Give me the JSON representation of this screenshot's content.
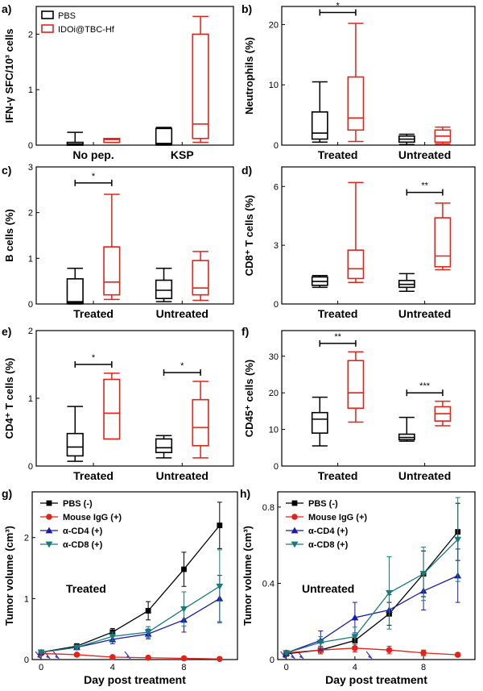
{
  "colors": {
    "pbs": "#000000",
    "idoi": "#e2231a",
    "mouse_igg": "#e2231a",
    "cd4": "#1a1aaa",
    "cd8": "#1a7a7a",
    "arrow": "#3a3ac8"
  },
  "chart_data": [
    {
      "id": "a",
      "type": "box",
      "panel_label": "a)",
      "ylabel": "IFN-γ SFC/10³ cells",
      "ylim": [
        0,
        2.5
      ],
      "yticks": [
        0,
        1,
        2
      ],
      "categories": [
        "No pep.",
        "KSP"
      ],
      "legend": [
        "PBS",
        "IDOi@TBC-Hf"
      ],
      "series": [
        {
          "name": "PBS",
          "boxes": [
            {
              "min": 0,
              "q1": 0,
              "median": 0.02,
              "q3": 0.05,
              "max": 0.23
            },
            {
              "min": 0,
              "q1": 0.02,
              "median": 0.03,
              "q3": 0.3,
              "max": 0.32
            }
          ]
        },
        {
          "name": "IDOi@TBC-Hf",
          "boxes": [
            {
              "min": 0.05,
              "q1": 0.05,
              "median": 0.1,
              "q3": 0.12,
              "max": 0.12
            },
            {
              "min": 0.05,
              "q1": 0.12,
              "median": 0.38,
              "q3": 2.0,
              "max": 2.32
            }
          ]
        }
      ],
      "significance": []
    },
    {
      "id": "b",
      "type": "box",
      "panel_label": "b)",
      "ylabel": "Neutrophils (%)",
      "ylim": [
        0,
        23
      ],
      "yticks": [
        0,
        10,
        20
      ],
      "categories": [
        "Treated",
        "Untreated"
      ],
      "series": [
        {
          "name": "PBS",
          "boxes": [
            {
              "min": 0.5,
              "q1": 1.0,
              "median": 2.0,
              "q3": 5.5,
              "max": 10.5
            },
            {
              "min": 0.1,
              "q1": 0.5,
              "median": 1.0,
              "q3": 1.5,
              "max": 1.8
            }
          ]
        },
        {
          "name": "IDOi@TBC-Hf",
          "boxes": [
            {
              "min": 0.6,
              "q1": 2.5,
              "median": 4.5,
              "q3": 11.3,
              "max": 20.2
            },
            {
              "min": 0.2,
              "q1": 0.5,
              "median": 1.5,
              "q3": 2.5,
              "max": 3.0
            }
          ]
        }
      ],
      "significance": [
        {
          "label": "*",
          "group": 0,
          "value": 22.0
        }
      ]
    },
    {
      "id": "c",
      "type": "box",
      "panel_label": "c)",
      "ylabel": "B cells (%)",
      "ylim": [
        0,
        3
      ],
      "yticks": [
        0,
        1,
        2,
        3
      ],
      "categories": [
        "Treated",
        "Untreated"
      ],
      "series": [
        {
          "name": "PBS",
          "boxes": [
            {
              "min": 0,
              "q1": 0.02,
              "median": 0.05,
              "q3": 0.55,
              "max": 0.78
            },
            {
              "min": 0.05,
              "q1": 0.12,
              "median": 0.3,
              "q3": 0.52,
              "max": 0.78
            }
          ]
        },
        {
          "name": "IDOi@TBC-Hf",
          "boxes": [
            {
              "min": 0.1,
              "q1": 0.2,
              "median": 0.48,
              "q3": 1.25,
              "max": 2.4
            },
            {
              "min": 0.08,
              "q1": 0.2,
              "median": 0.35,
              "q3": 0.95,
              "max": 1.15
            }
          ]
        }
      ],
      "significance": [
        {
          "label": "*",
          "group": 0,
          "value": 2.65
        }
      ]
    },
    {
      "id": "d",
      "type": "box",
      "panel_label": "d)",
      "ylabel": "CD8⁺ T cells (%)",
      "ylim": [
        0,
        7
      ],
      "yticks": [
        0,
        3,
        6
      ],
      "categories": [
        "Treated",
        "Untreated"
      ],
      "series": [
        {
          "name": "PBS",
          "boxes": [
            {
              "min": 0.85,
              "q1": 0.95,
              "median": 1.15,
              "q3": 1.38,
              "max": 1.45
            },
            {
              "min": 0.65,
              "q1": 0.85,
              "median": 1.0,
              "q3": 1.2,
              "max": 1.55
            }
          ]
        },
        {
          "name": "IDOi@TBC-Hf",
          "boxes": [
            {
              "min": 1.1,
              "q1": 1.3,
              "median": 1.8,
              "q3": 2.75,
              "max": 6.2
            },
            {
              "min": 1.75,
              "q1": 1.9,
              "median": 2.45,
              "q3": 4.4,
              "max": 5.15
            }
          ]
        }
      ],
      "significance": [
        {
          "label": "**",
          "group": 1,
          "value": 5.7
        }
      ]
    },
    {
      "id": "e",
      "type": "box",
      "panel_label": "e)",
      "ylabel": "CD4⁺ T cells (%)",
      "ylim": [
        0,
        2
      ],
      "yticks": [
        0,
        1,
        2
      ],
      "categories": [
        "Treated",
        "Untreated"
      ],
      "series": [
        {
          "name": "PBS",
          "boxes": [
            {
              "min": 0.07,
              "q1": 0.15,
              "median": 0.28,
              "q3": 0.48,
              "max": 0.88
            },
            {
              "min": 0.12,
              "q1": 0.2,
              "median": 0.27,
              "q3": 0.4,
              "max": 0.45
            }
          ]
        },
        {
          "name": "IDOi@TBC-Hf",
          "boxes": [
            {
              "min": 0.4,
              "q1": 0.4,
              "median": 0.78,
              "q3": 1.28,
              "max": 1.37
            },
            {
              "min": 0.12,
              "q1": 0.3,
              "median": 0.57,
              "q3": 0.98,
              "max": 1.25
            }
          ]
        }
      ],
      "significance": [
        {
          "label": "*",
          "group": 0,
          "value": 1.5
        },
        {
          "label": "*",
          "group": 1,
          "value": 1.38
        }
      ]
    },
    {
      "id": "f",
      "type": "box",
      "panel_label": "f)",
      "ylabel": "CD45⁺ cells (%)",
      "ylim": [
        0,
        37
      ],
      "yticks": [
        0,
        10,
        20,
        30
      ],
      "categories": [
        "Treated",
        "Untreated"
      ],
      "series": [
        {
          "name": "PBS",
          "boxes": [
            {
              "min": 5.5,
              "q1": 9.0,
              "median": 12.8,
              "q3": 14.6,
              "max": 18.8
            },
            {
              "min": 6.8,
              "q1": 7.2,
              "median": 7.8,
              "q3": 8.7,
              "max": 13.3
            }
          ]
        },
        {
          "name": "IDOi@TBC-Hf",
          "boxes": [
            {
              "min": 12.0,
              "q1": 15.8,
              "median": 20.0,
              "q3": 28.8,
              "max": 31.2
            },
            {
              "min": 11.0,
              "q1": 12.3,
              "median": 14.3,
              "q3": 16.2,
              "max": 17.7
            }
          ]
        }
      ],
      "significance": [
        {
          "label": "**",
          "group": 0,
          "value": 33.5
        },
        {
          "label": "***",
          "group": 1,
          "value": 20.0
        }
      ]
    },
    {
      "id": "g",
      "type": "line",
      "panel_label": "g)",
      "xlabel": "Day post treatment",
      "ylabel": "Tumor volume (cm³)",
      "annotation": "Treated",
      "xlim": [
        -0.5,
        11
      ],
      "xticks": [
        0,
        4,
        8
      ],
      "ylim": [
        0,
        2.75
      ],
      "yticks": [
        0,
        1,
        2
      ],
      "arrows_at_days": [
        0,
        0.5,
        1,
        5
      ],
      "x": [
        0,
        2,
        4,
        6,
        8,
        10
      ],
      "series": [
        {
          "name": "PBS (-)",
          "marker": "square",
          "values": [
            0.12,
            0.22,
            0.45,
            0.8,
            1.48,
            2.2
          ],
          "err": [
            0.02,
            0.04,
            0.06,
            0.15,
            0.28,
            0.38
          ]
        },
        {
          "name": "Mouse IgG (+)",
          "marker": "circle",
          "values": [
            0.1,
            0.08,
            0.04,
            0.03,
            0.02,
            0.01
          ],
          "err": [
            0.02,
            0.02,
            0.01,
            0.01,
            0.01,
            0.01
          ]
        },
        {
          "name": "α-CD4 (+)",
          "marker": "triangle-up",
          "values": [
            0.12,
            0.2,
            0.33,
            0.42,
            0.65,
            1.0
          ],
          "err": [
            0.02,
            0.04,
            0.07,
            0.08,
            0.2,
            0.38
          ]
        },
        {
          "name": "α-CD8 (+)",
          "marker": "triangle-down",
          "values": [
            0.12,
            0.2,
            0.38,
            0.45,
            0.83,
            1.2
          ],
          "err": [
            0.02,
            0.04,
            0.07,
            0.09,
            0.28,
            0.6
          ]
        }
      ]
    },
    {
      "id": "h",
      "type": "line",
      "panel_label": "h)",
      "xlabel": "Day post treatment",
      "ylabel": "Tumor volume (cm³)",
      "annotation": "Untreated",
      "xlim": [
        -0.5,
        11
      ],
      "xticks": [
        0,
        4,
        8
      ],
      "ylim": [
        0,
        0.88
      ],
      "yticks": [
        0,
        0.4,
        0.8
      ],
      "arrows_at_days": [
        0,
        0.5,
        1,
        5
      ],
      "x": [
        0,
        2,
        4,
        6,
        8,
        10
      ],
      "series": [
        {
          "name": "PBS (-)",
          "marker": "square",
          "values": [
            0.03,
            0.05,
            0.1,
            0.24,
            0.45,
            0.67
          ],
          "err": [
            0.01,
            0.02,
            0.03,
            0.06,
            0.12,
            0.15
          ]
        },
        {
          "name": "Mouse IgG (+)",
          "marker": "circle",
          "values": [
            0.035,
            0.05,
            0.06,
            0.05,
            0.035,
            0.025
          ],
          "err": [
            0.01,
            0.02,
            0.02,
            0.02,
            0.015,
            0.01
          ]
        },
        {
          "name": "α-CD4 (+)",
          "marker": "triangle-up",
          "values": [
            0.035,
            0.1,
            0.22,
            0.26,
            0.36,
            0.44
          ],
          "err": [
            0.01,
            0.05,
            0.08,
            0.08,
            0.1,
            0.14
          ]
        },
        {
          "name": "α-CD8 (+)",
          "marker": "triangle-down",
          "values": [
            0.035,
            0.09,
            0.12,
            0.35,
            0.45,
            0.63
          ],
          "err": [
            0.01,
            0.03,
            0.05,
            0.19,
            0.14,
            0.22
          ]
        }
      ]
    }
  ]
}
